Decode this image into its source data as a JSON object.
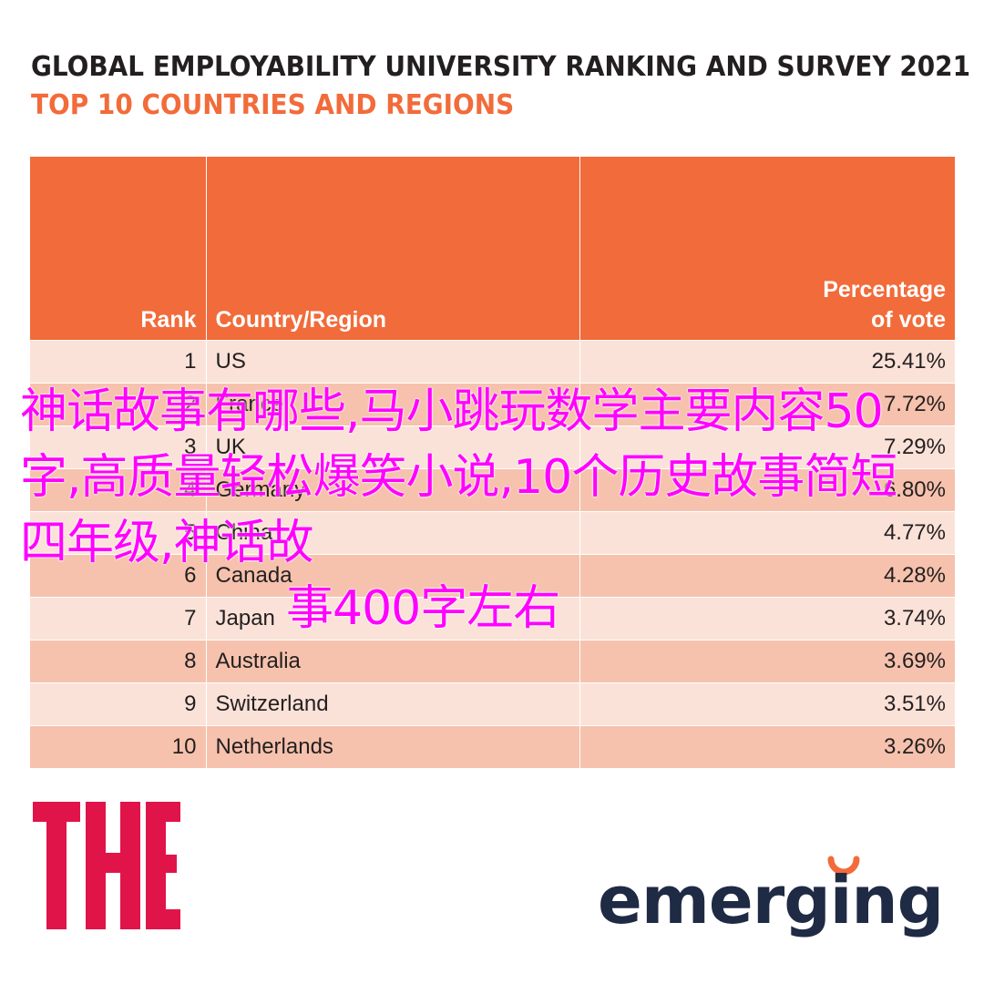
{
  "header": {
    "title": "GLOBAL EMPLOYABILITY UNIVERSITY RANKING AND SURVEY 2021",
    "subtitle": "TOP 10 COUNTRIES AND REGIONS"
  },
  "colors": {
    "accent": "#f26b3a",
    "row_light": "#fbe2d8",
    "row_dark": "#f6c2ad",
    "title_text": "#231f20",
    "overlay_text": "#ff00ff",
    "logo_the": "#e1144a",
    "logo_the_dark": "#1f2a6b",
    "logo_emerging": "#1f2a44"
  },
  "chart_data": {
    "type": "table",
    "title": "GLOBAL EMPLOYABILITY UNIVERSITY RANKING AND SURVEY 2021",
    "subtitle": "TOP 10 COUNTRIES AND REGIONS",
    "columns": [
      "Rank",
      "Country/Region",
      "Percentage of vote"
    ],
    "column_labels": {
      "rank": "Rank",
      "country": "Country/Region",
      "pct_line1": "Percentage",
      "pct_line2": "of vote"
    },
    "rows": [
      {
        "rank": "1",
        "country": "US",
        "pct": "25.41%"
      },
      {
        "rank": "2",
        "country": "France",
        "pct": "7.72%"
      },
      {
        "rank": "3",
        "country": "UK",
        "pct": "7.29%"
      },
      {
        "rank": "4",
        "country": "Germany",
        "pct": "6.80%"
      },
      {
        "rank": "5",
        "country": "China",
        "pct": "4.77%"
      },
      {
        "rank": "6",
        "country": "Canada",
        "pct": "4.28%"
      },
      {
        "rank": "7",
        "country": "Japan",
        "pct": "3.74%"
      },
      {
        "rank": "8",
        "country": "Australia",
        "pct": "3.69%"
      },
      {
        "rank": "9",
        "country": "Switzerland",
        "pct": "3.51%"
      },
      {
        "rank": "10",
        "country": "Netherlands",
        "pct": "3.26%"
      }
    ]
  },
  "overlay": {
    "line1": "神话故事有哪些,马小跳玩数学主要",
    "line2": "内容50字,高质量轻松爆笑小说,",
    "line3": "10个历史故事简短四年级,神话故",
    "line4": "事400字左右"
  },
  "logos": {
    "the": "THE",
    "emerging": "emerging"
  }
}
